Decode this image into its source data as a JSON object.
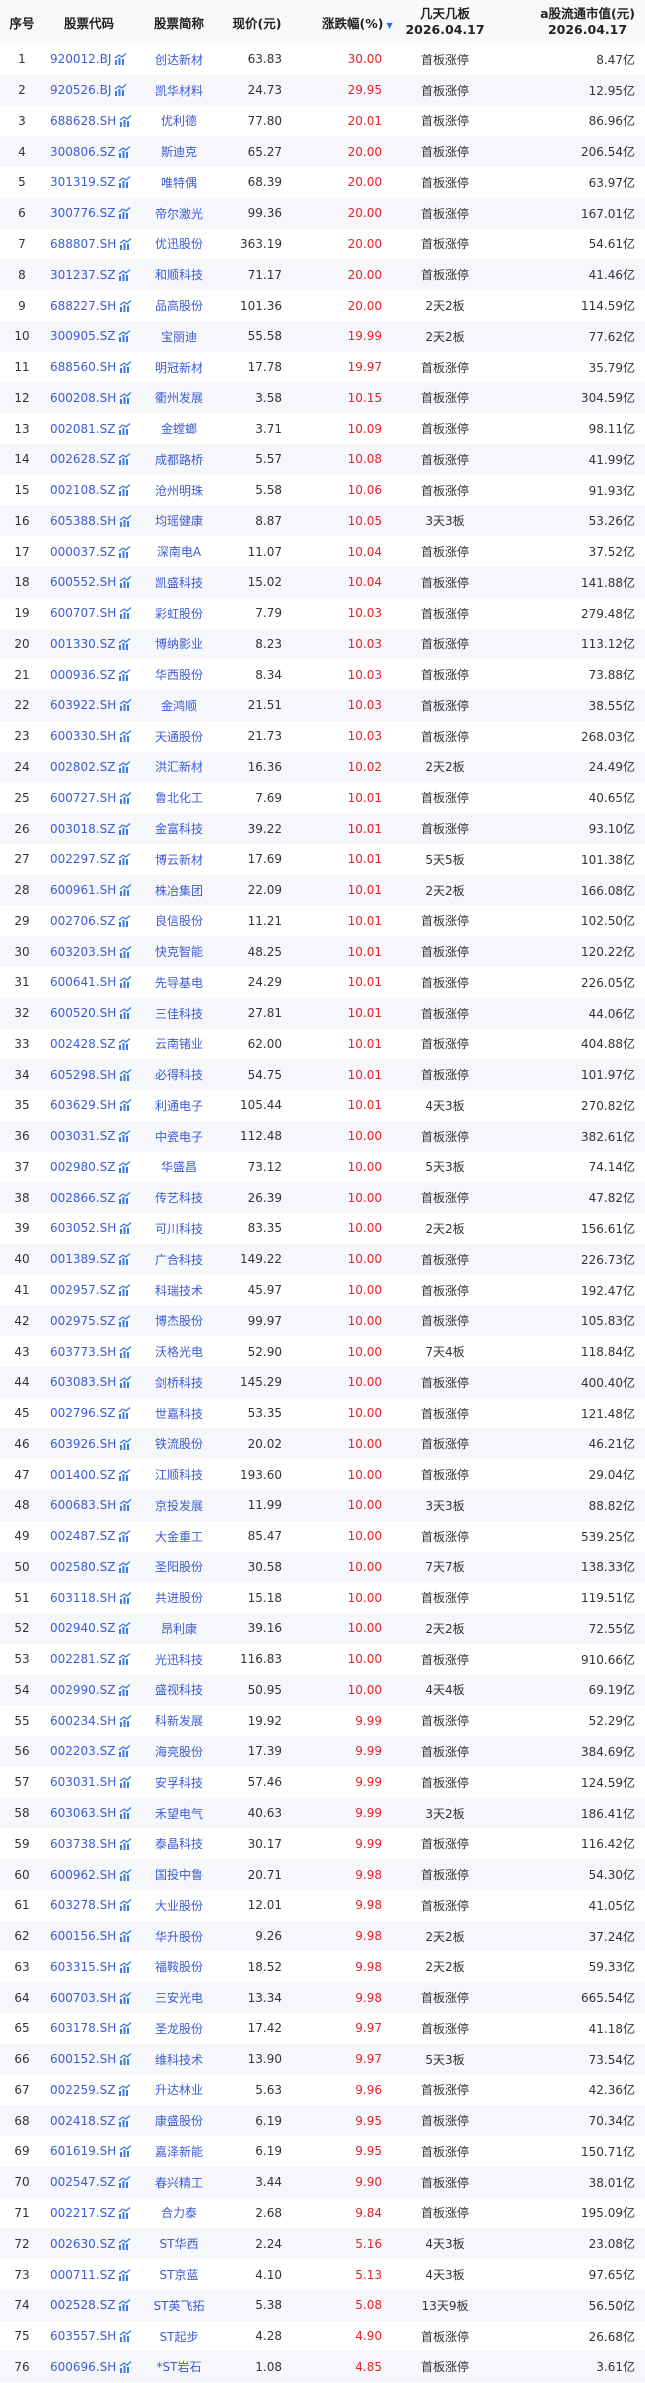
{
  "header": {
    "index": "序号",
    "code": "股票代码",
    "name": "股票简称",
    "price": "现价(元)",
    "change": "涨跌幅(%)",
    "sort_indicator": "▼",
    "boards_line1": "几天几板",
    "boards_line2": "2026.04.17",
    "cap_line1": "a股流通市值(元)",
    "cap_line2": "2026.04.17"
  },
  "colors": {
    "link": "#3d5bd6",
    "up": "#e8202a",
    "stripe": "#f6f7fb"
  },
  "icons": {
    "code_trend": "trend-chart-icon"
  },
  "rows": [
    [
      "1",
      "920012.BJ",
      "创达新材",
      "63.83",
      "30.00",
      "首板涨停",
      "8.47亿"
    ],
    [
      "2",
      "920526.BJ",
      "凯华材料",
      "24.73",
      "29.95",
      "首板涨停",
      "12.95亿"
    ],
    [
      "3",
      "688628.SH",
      "优利德",
      "77.80",
      "20.01",
      "首板涨停",
      "86.96亿"
    ],
    [
      "4",
      "300806.SZ",
      "斯迪克",
      "65.27",
      "20.00",
      "首板涨停",
      "206.54亿"
    ],
    [
      "5",
      "301319.SZ",
      "唯特偶",
      "68.39",
      "20.00",
      "首板涨停",
      "63.97亿"
    ],
    [
      "6",
      "300776.SZ",
      "帝尔激光",
      "99.36",
      "20.00",
      "首板涨停",
      "167.01亿"
    ],
    [
      "7",
      "688807.SH",
      "优迅股份",
      "363.19",
      "20.00",
      "首板涨停",
      "54.61亿"
    ],
    [
      "8",
      "301237.SZ",
      "和顺科技",
      "71.17",
      "20.00",
      "首板涨停",
      "41.46亿"
    ],
    [
      "9",
      "688227.SH",
      "品高股份",
      "101.36",
      "20.00",
      "2天2板",
      "114.59亿"
    ],
    [
      "10",
      "300905.SZ",
      "宝丽迪",
      "55.58",
      "19.99",
      "2天2板",
      "77.62亿"
    ],
    [
      "11",
      "688560.SH",
      "明冠新材",
      "17.78",
      "19.97",
      "首板涨停",
      "35.79亿"
    ],
    [
      "12",
      "600208.SH",
      "衢州发展",
      "3.58",
      "10.15",
      "首板涨停",
      "304.59亿"
    ],
    [
      "13",
      "002081.SZ",
      "金螳螂",
      "3.71",
      "10.09",
      "首板涨停",
      "98.11亿"
    ],
    [
      "14",
      "002628.SZ",
      "成都路桥",
      "5.57",
      "10.08",
      "首板涨停",
      "41.99亿"
    ],
    [
      "15",
      "002108.SZ",
      "沧州明珠",
      "5.58",
      "10.06",
      "首板涨停",
      "91.93亿"
    ],
    [
      "16",
      "605388.SH",
      "均瑶健康",
      "8.87",
      "10.05",
      "3天3板",
      "53.26亿"
    ],
    [
      "17",
      "000037.SZ",
      "深南电A",
      "11.07",
      "10.04",
      "首板涨停",
      "37.52亿"
    ],
    [
      "18",
      "600552.SH",
      "凯盛科技",
      "15.02",
      "10.04",
      "首板涨停",
      "141.88亿"
    ],
    [
      "19",
      "600707.SH",
      "彩虹股份",
      "7.79",
      "10.03",
      "首板涨停",
      "279.48亿"
    ],
    [
      "20",
      "001330.SZ",
      "博纳影业",
      "8.23",
      "10.03",
      "首板涨停",
      "113.12亿"
    ],
    [
      "21",
      "000936.SZ",
      "华西股份",
      "8.34",
      "10.03",
      "首板涨停",
      "73.88亿"
    ],
    [
      "22",
      "603922.SH",
      "金鸿顺",
      "21.51",
      "10.03",
      "首板涨停",
      "38.55亿"
    ],
    [
      "23",
      "600330.SH",
      "天通股份",
      "21.73",
      "10.03",
      "首板涨停",
      "268.03亿"
    ],
    [
      "24",
      "002802.SZ",
      "洪汇新材",
      "16.36",
      "10.02",
      "2天2板",
      "24.49亿"
    ],
    [
      "25",
      "600727.SH",
      "鲁北化工",
      "7.69",
      "10.01",
      "首板涨停",
      "40.65亿"
    ],
    [
      "26",
      "003018.SZ",
      "金富科技",
      "39.22",
      "10.01",
      "首板涨停",
      "93.10亿"
    ],
    [
      "27",
      "002297.SZ",
      "博云新材",
      "17.69",
      "10.01",
      "5天5板",
      "101.38亿"
    ],
    [
      "28",
      "600961.SH",
      "株冶集团",
      "22.09",
      "10.01",
      "2天2板",
      "166.08亿"
    ],
    [
      "29",
      "002706.SZ",
      "良信股份",
      "11.21",
      "10.01",
      "首板涨停",
      "102.50亿"
    ],
    [
      "30",
      "603203.SH",
      "快克智能",
      "48.25",
      "10.01",
      "首板涨停",
      "120.22亿"
    ],
    [
      "31",
      "600641.SH",
      "先导基电",
      "24.29",
      "10.01",
      "首板涨停",
      "226.05亿"
    ],
    [
      "32",
      "600520.SH",
      "三佳科技",
      "27.81",
      "10.01",
      "首板涨停",
      "44.06亿"
    ],
    [
      "33",
      "002428.SZ",
      "云南锗业",
      "62.00",
      "10.01",
      "首板涨停",
      "404.88亿"
    ],
    [
      "34",
      "605298.SH",
      "必得科技",
      "54.75",
      "10.01",
      "首板涨停",
      "101.97亿"
    ],
    [
      "35",
      "603629.SH",
      "利通电子",
      "105.44",
      "10.01",
      "4天3板",
      "270.82亿"
    ],
    [
      "36",
      "003031.SZ",
      "中瓷电子",
      "112.48",
      "10.00",
      "首板涨停",
      "382.61亿"
    ],
    [
      "37",
      "002980.SZ",
      "华盛昌",
      "73.12",
      "10.00",
      "5天3板",
      "74.14亿"
    ],
    [
      "38",
      "002866.SZ",
      "传艺科技",
      "26.39",
      "10.00",
      "首板涨停",
      "47.82亿"
    ],
    [
      "39",
      "603052.SH",
      "可川科技",
      "83.35",
      "10.00",
      "2天2板",
      "156.61亿"
    ],
    [
      "40",
      "001389.SZ",
      "广合科技",
      "149.22",
      "10.00",
      "首板涨停",
      "226.73亿"
    ],
    [
      "41",
      "002957.SZ",
      "科瑞技术",
      "45.97",
      "10.00",
      "首板涨停",
      "192.47亿"
    ],
    [
      "42",
      "002975.SZ",
      "博杰股份",
      "99.97",
      "10.00",
      "首板涨停",
      "105.83亿"
    ],
    [
      "43",
      "603773.SH",
      "沃格光电",
      "52.90",
      "10.00",
      "7天4板",
      "118.84亿"
    ],
    [
      "44",
      "603083.SH",
      "剑桥科技",
      "145.29",
      "10.00",
      "首板涨停",
      "400.40亿"
    ],
    [
      "45",
      "002796.SZ",
      "世嘉科技",
      "53.35",
      "10.00",
      "首板涨停",
      "121.48亿"
    ],
    [
      "46",
      "603926.SH",
      "铁流股份",
      "20.02",
      "10.00",
      "首板涨停",
      "46.21亿"
    ],
    [
      "47",
      "001400.SZ",
      "江顺科技",
      "193.60",
      "10.00",
      "首板涨停",
      "29.04亿"
    ],
    [
      "48",
      "600683.SH",
      "京投发展",
      "11.99",
      "10.00",
      "3天3板",
      "88.82亿"
    ],
    [
      "49",
      "002487.SZ",
      "大金重工",
      "85.47",
      "10.00",
      "首板涨停",
      "539.25亿"
    ],
    [
      "50",
      "002580.SZ",
      "圣阳股份",
      "30.58",
      "10.00",
      "7天7板",
      "138.33亿"
    ],
    [
      "51",
      "603118.SH",
      "共进股份",
      "15.18",
      "10.00",
      "首板涨停",
      "119.51亿"
    ],
    [
      "52",
      "002940.SZ",
      "昂利康",
      "39.16",
      "10.00",
      "2天2板",
      "72.55亿"
    ],
    [
      "53",
      "002281.SZ",
      "光迅科技",
      "116.83",
      "10.00",
      "首板涨停",
      "910.66亿"
    ],
    [
      "54",
      "002990.SZ",
      "盛视科技",
      "50.95",
      "10.00",
      "4天4板",
      "69.19亿"
    ],
    [
      "55",
      "600234.SH",
      "科新发展",
      "19.92",
      "9.99",
      "首板涨停",
      "52.29亿"
    ],
    [
      "56",
      "002203.SZ",
      "海亮股份",
      "17.39",
      "9.99",
      "首板涨停",
      "384.69亿"
    ],
    [
      "57",
      "603031.SH",
      "安孚科技",
      "57.46",
      "9.99",
      "首板涨停",
      "124.59亿"
    ],
    [
      "58",
      "603063.SH",
      "禾望电气",
      "40.63",
      "9.99",
      "3天2板",
      "186.41亿"
    ],
    [
      "59",
      "603738.SH",
      "泰晶科技",
      "30.17",
      "9.99",
      "首板涨停",
      "116.42亿"
    ],
    [
      "60",
      "600962.SH",
      "国投中鲁",
      "20.71",
      "9.98",
      "首板涨停",
      "54.30亿"
    ],
    [
      "61",
      "603278.SH",
      "大业股份",
      "12.01",
      "9.98",
      "首板涨停",
      "41.05亿"
    ],
    [
      "62",
      "600156.SH",
      "华升股份",
      "9.26",
      "9.98",
      "2天2板",
      "37.24亿"
    ],
    [
      "63",
      "603315.SH",
      "福鞍股份",
      "18.52",
      "9.98",
      "2天2板",
      "59.33亿"
    ],
    [
      "64",
      "600703.SH",
      "三安光电",
      "13.34",
      "9.98",
      "首板涨停",
      "665.54亿"
    ],
    [
      "65",
      "603178.SH",
      "圣龙股份",
      "17.42",
      "9.97",
      "首板涨停",
      "41.18亿"
    ],
    [
      "66",
      "600152.SH",
      "维科技术",
      "13.90",
      "9.97",
      "5天3板",
      "73.54亿"
    ],
    [
      "67",
      "002259.SZ",
      "升达林业",
      "5.63",
      "9.96",
      "首板涨停",
      "42.36亿"
    ],
    [
      "68",
      "002418.SZ",
      "康盛股份",
      "6.19",
      "9.95",
      "首板涨停",
      "70.34亿"
    ],
    [
      "69",
      "601619.SH",
      "嘉泽新能",
      "6.19",
      "9.95",
      "首板涨停",
      "150.71亿"
    ],
    [
      "70",
      "002547.SZ",
      "春兴精工",
      "3.44",
      "9.90",
      "首板涨停",
      "38.01亿"
    ],
    [
      "71",
      "002217.SZ",
      "合力泰",
      "2.68",
      "9.84",
      "首板涨停",
      "195.09亿"
    ],
    [
      "72",
      "002630.SZ",
      "ST华西",
      "2.24",
      "5.16",
      "4天3板",
      "23.08亿"
    ],
    [
      "73",
      "000711.SZ",
      "ST京蓝",
      "4.10",
      "5.13",
      "4天3板",
      "97.65亿"
    ],
    [
      "74",
      "002528.SZ",
      "ST英飞拓",
      "5.38",
      "5.08",
      "13天9板",
      "56.50亿"
    ],
    [
      "75",
      "603557.SH",
      "ST起步",
      "4.28",
      "4.90",
      "首板涨停",
      "26.68亿"
    ],
    [
      "76",
      "600696.SH",
      "*ST岩石",
      "1.08",
      "4.85",
      "首板涨停",
      "3.61亿"
    ]
  ]
}
